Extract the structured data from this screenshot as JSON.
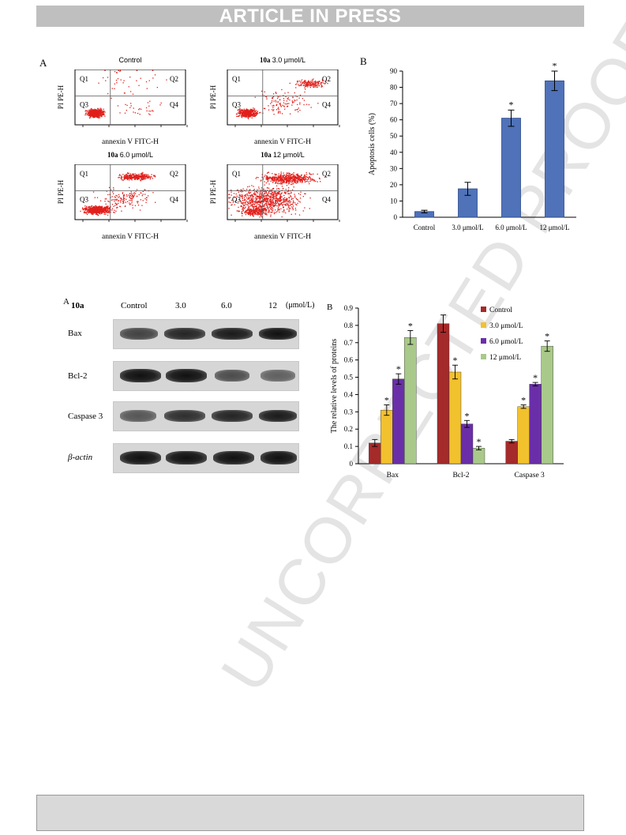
{
  "header": {
    "banner": "ARTICLE IN PRESS"
  },
  "watermark": "UNCORRECTED PROOF",
  "figure1": {
    "panel_a_letter": "A",
    "panel_b_letter": "B",
    "flow_plots": [
      {
        "title_prefix": "",
        "title": "Control"
      },
      {
        "title_prefix": "10a",
        "title": "3.0 μmol/L"
      },
      {
        "title_prefix": "10a",
        "title": "6.0 μmol/L"
      },
      {
        "title_prefix": "10a",
        "title": "12 μmol/L"
      }
    ],
    "quadrants": [
      "Q1",
      "Q2",
      "Q3",
      "Q4"
    ],
    "flow_xlabel": "annexin V FITC-H",
    "flow_ylabel": "PI PE-H"
  },
  "figure2": {
    "panel_a_letter": "A",
    "panel_b_letter": "B",
    "blot": {
      "compound": "10a",
      "columns": [
        "Control",
        "3.0",
        "6.0",
        "12"
      ],
      "unit": "(μmol/L)",
      "rows": [
        "Bax",
        "Bcl-2",
        "Caspase 3",
        "β-actin"
      ]
    }
  },
  "chart_data": [
    {
      "type": "bar",
      "categories": [
        "Control",
        "3.0 μmol/L",
        "6.0 μmol/L",
        "12 μmol/L"
      ],
      "values": [
        3.5,
        17.5,
        61,
        84
      ],
      "errors": [
        0.8,
        4,
        5,
        6
      ],
      "significance": [
        "",
        "",
        "*",
        "*"
      ],
      "ylabel": "Apoptosis cells (%)",
      "ylim": [
        0,
        90
      ],
      "yticks": [
        0,
        10,
        20,
        30,
        40,
        50,
        60,
        70,
        80,
        90
      ],
      "color": "#4f72b8"
    },
    {
      "type": "bar",
      "categories": [
        "Bax",
        "Bcl-2",
        "Caspase 3"
      ],
      "series": [
        {
          "name": "Control",
          "color": "#a52a2a",
          "values": [
            0.12,
            0.81,
            0.13
          ],
          "errors": [
            0.02,
            0.05,
            0.01
          ],
          "significance": [
            "",
            "",
            ""
          ]
        },
        {
          "name": "3.0 μmol/L",
          "color": "#f2c12e",
          "values": [
            0.31,
            0.53,
            0.33
          ],
          "errors": [
            0.03,
            0.04,
            0.01
          ],
          "significance": [
            "*",
            "*",
            "*"
          ]
        },
        {
          "name": "6.0 μmol/L",
          "color": "#6a2fa8",
          "values": [
            0.49,
            0.23,
            0.46
          ],
          "errors": [
            0.03,
            0.02,
            0.01
          ],
          "significance": [
            "*",
            "*",
            "*"
          ]
        },
        {
          "name": "12 μmol/L",
          "color": "#a9c98a",
          "values": [
            0.73,
            0.09,
            0.68
          ],
          "errors": [
            0.04,
            0.01,
            0.03
          ],
          "significance": [
            "*",
            "*",
            "*"
          ]
        }
      ],
      "ylabel": "The relative levels of proteins",
      "ylim": [
        0,
        0.9
      ],
      "yticks": [
        0,
        0.1,
        0.2,
        0.3,
        0.4,
        0.5,
        0.6,
        0.7,
        0.8,
        0.9
      ],
      "legend": "top-right"
    }
  ]
}
